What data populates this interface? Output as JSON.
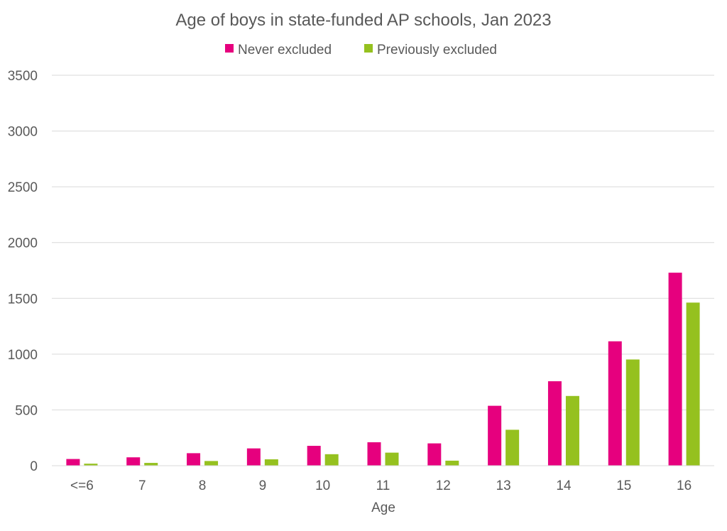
{
  "chart_data": {
    "type": "bar",
    "title": "Age of boys in state-funded AP schools, Jan 2023",
    "xlabel": "Age",
    "ylabel": "",
    "categories": [
      "<=6",
      "7",
      "8",
      "9",
      "10",
      "11",
      "12",
      "13",
      "14",
      "15",
      "16"
    ],
    "series": [
      {
        "name": "Never excluded",
        "color": "#E6007E",
        "values": [
          60,
          75,
          112,
          155,
          178,
          210,
          200,
          537,
          757,
          1115,
          1730
        ]
      },
      {
        "name": "Previously excluded",
        "color": "#95C11F",
        "values": [
          18,
          25,
          42,
          57,
          103,
          117,
          45,
          322,
          625,
          952,
          1462
        ]
      }
    ],
    "ylim": [
      0,
      3500
    ],
    "yticks": [
      0,
      500,
      1000,
      1500,
      2000,
      2500,
      3000,
      3500
    ],
    "grid": true,
    "legend_position": "top-center",
    "gridline_color": "#d9d9d9",
    "text_color": "#595959"
  }
}
